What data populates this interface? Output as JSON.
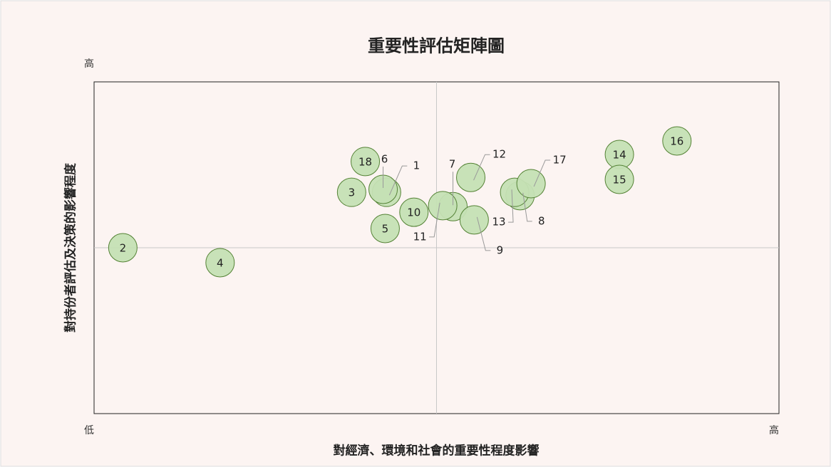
{
  "chart_data": {
    "type": "scatter",
    "title": "重要性評估矩陣圖",
    "x_label": "對經濟、環境和社會的重要性程度影響",
    "y_label": "對持份者評估及決策的影響程度",
    "point_labels": [
      "1",
      "2",
      "3",
      "4",
      "5",
      "6",
      "7",
      "8",
      "9",
      "10",
      "11",
      "12",
      "13",
      "14",
      "15",
      "16",
      "17",
      "18"
    ],
    "x": [
      4.27,
      0.42,
      3.76,
      1.84,
      4.25,
      4.22,
      5.24,
      6.22,
      5.55,
      4.67,
      5.09,
      5.5,
      6.14,
      7.67,
      7.67,
      8.51,
      6.38,
      3.96
    ],
    "values": [
      6.67,
      5.0,
      6.67,
      4.55,
      5.58,
      6.76,
      6.24,
      6.57,
      5.84,
      6.07,
      6.27,
      7.12,
      6.67,
      7.81,
      7.06,
      8.22,
      6.93,
      7.6
    ],
    "color": "#c5e0b4",
    "edge_color": "#548235",
    "xlim": [
      0,
      10
    ],
    "ylim": [
      0,
      10
    ],
    "xticks": [
      {
        "value": 0,
        "label": "低"
      },
      {
        "value": 10,
        "label": "高"
      }
    ],
    "yticks": [
      {
        "value": 10,
        "label": "高"
      }
    ],
    "quadrant_x": 5,
    "quadrant_y": 5
  }
}
